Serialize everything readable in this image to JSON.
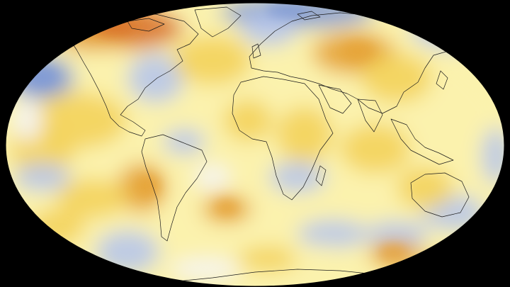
{
  "map": {
    "projection": "robinson",
    "background_color": "#000000",
    "palette": {
      "cool_strong": "#7f9ad6",
      "cool": "#b7c6ea",
      "neutral": "#f4f4f6",
      "warm_light": "#fbf2ad",
      "warm": "#f3d35c",
      "warm_strong": "#e6a43a",
      "hot": "#d9722a"
    },
    "coastline_color": "#1a1a1a",
    "legend": "none",
    "labels": []
  }
}
